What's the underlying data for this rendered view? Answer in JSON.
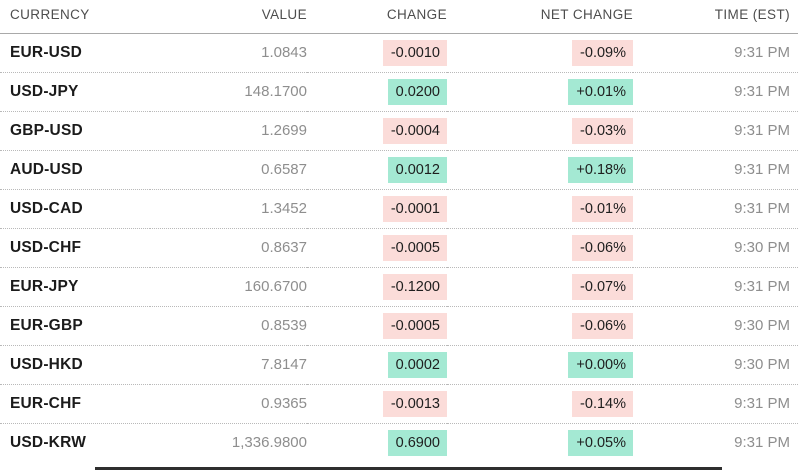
{
  "table": {
    "headers": {
      "currency": "CURRENCY",
      "value": "VALUE",
      "change": "CHANGE",
      "net_change": "NET CHANGE",
      "time": "TIME (EST)"
    },
    "rows": [
      {
        "pair": "EUR-USD",
        "value": "1.0843",
        "change": "-0.0010",
        "net_change": "-0.09%",
        "time": "9:31 PM",
        "dir": "neg"
      },
      {
        "pair": "USD-JPY",
        "value": "148.1700",
        "change": "0.0200",
        "net_change": "+0.01%",
        "time": "9:31 PM",
        "dir": "pos"
      },
      {
        "pair": "GBP-USD",
        "value": "1.2699",
        "change": "-0.0004",
        "net_change": "-0.03%",
        "time": "9:31 PM",
        "dir": "neg"
      },
      {
        "pair": "AUD-USD",
        "value": "0.6587",
        "change": "0.0012",
        "net_change": "+0.18%",
        "time": "9:31 PM",
        "dir": "pos"
      },
      {
        "pair": "USD-CAD",
        "value": "1.3452",
        "change": "-0.0001",
        "net_change": "-0.01%",
        "time": "9:31 PM",
        "dir": "neg"
      },
      {
        "pair": "USD-CHF",
        "value": "0.8637",
        "change": "-0.0005",
        "net_change": "-0.06%",
        "time": "9:30 PM",
        "dir": "neg"
      },
      {
        "pair": "EUR-JPY",
        "value": "160.6700",
        "change": "-0.1200",
        "net_change": "-0.07%",
        "time": "9:31 PM",
        "dir": "neg"
      },
      {
        "pair": "EUR-GBP",
        "value": "0.8539",
        "change": "-0.0005",
        "net_change": "-0.06%",
        "time": "9:30 PM",
        "dir": "neg"
      },
      {
        "pair": "USD-HKD",
        "value": "7.8147",
        "change": "0.0002",
        "net_change": "+0.00%",
        "time": "9:30 PM",
        "dir": "pos"
      },
      {
        "pair": "EUR-CHF",
        "value": "0.9365",
        "change": "-0.0013",
        "net_change": "-0.14%",
        "time": "9:31 PM",
        "dir": "neg"
      },
      {
        "pair": "USD-KRW",
        "value": "1,336.9800",
        "change": "0.6900",
        "net_change": "+0.05%",
        "time": "9:31 PM",
        "dir": "pos"
      }
    ]
  },
  "colors": {
    "positive_badge_bg": "#a4e9d3",
    "negative_badge_bg": "#fbdcd9",
    "pair_text": "#1b1b1b",
    "muted_text": "#8e8e8e",
    "header_text": "#4d4d4d"
  }
}
